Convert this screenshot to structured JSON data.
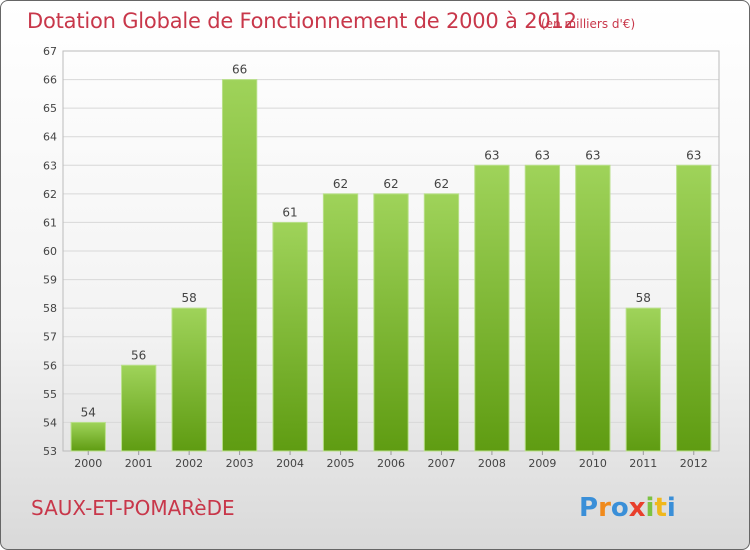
{
  "header": {
    "title": "Dotation Globale de Fonctionnement de 2000 à 2012",
    "unit": "(en milliers d'€)"
  },
  "footer": {
    "commune": "SAUX-ET-POMARèDE",
    "logo_text": "Proxiti"
  },
  "colors": {
    "title": "#c8374a",
    "bar_light": "#9fd35a",
    "bar_dark": "#5f9c12"
  },
  "chart_data": {
    "type": "bar",
    "title": "Dotation Globale de Fonctionnement de 2000 à 2012",
    "ylabel": "(en milliers d'€)",
    "categories": [
      "2000",
      "2001",
      "2002",
      "2003",
      "2004",
      "2005",
      "2006",
      "2007",
      "2008",
      "2009",
      "2010",
      "2011",
      "2012"
    ],
    "values": [
      54,
      56,
      58,
      66,
      61,
      62,
      62,
      62,
      63,
      63,
      63,
      58,
      63
    ],
    "ylim": [
      53,
      67
    ],
    "yticks": [
      53,
      54,
      55,
      56,
      57,
      58,
      59,
      60,
      61,
      62,
      63,
      64,
      65,
      66,
      67
    ],
    "grid": true
  }
}
